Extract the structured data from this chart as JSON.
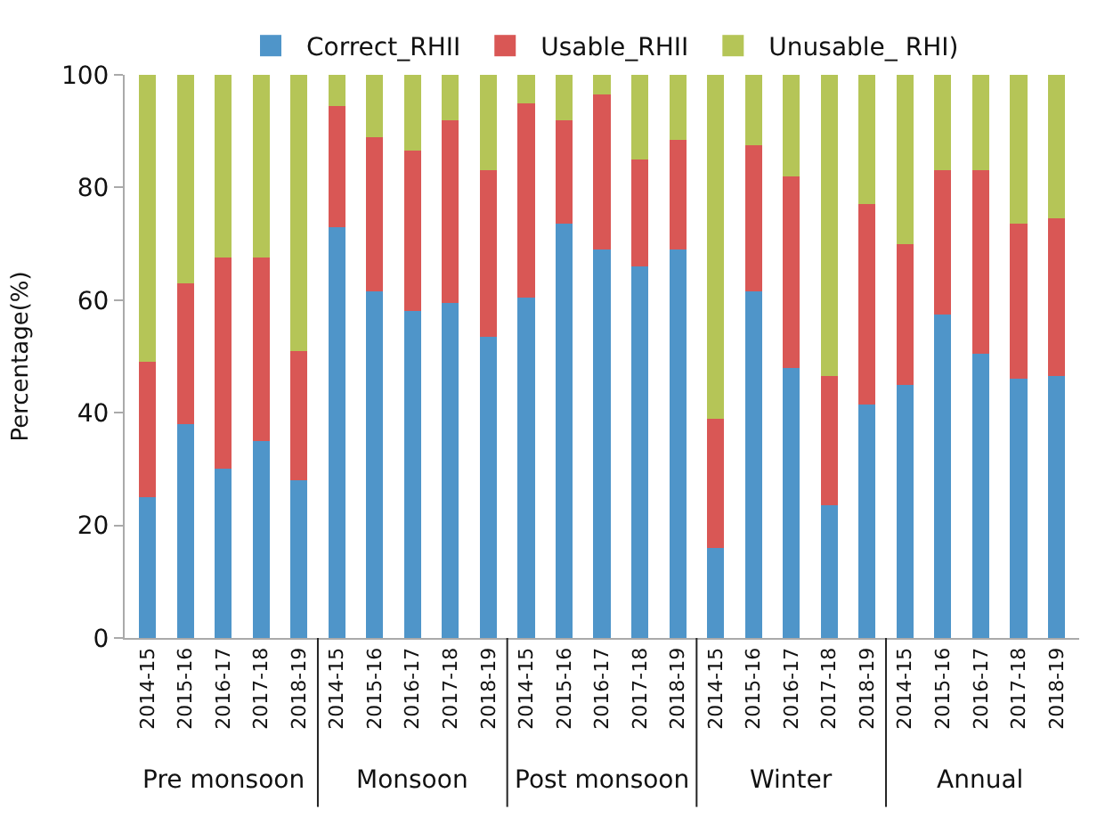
{
  "chart_data": {
    "type": "bar",
    "stacked": true,
    "ylabel": "Percentage(%)",
    "ylim": [
      0,
      100
    ],
    "yticks": [
      0,
      20,
      40,
      60,
      80,
      100
    ],
    "legend": "top",
    "categories": [
      "2014-15",
      "2015-16",
      "2016-17",
      "2017-18",
      "2018-19",
      "2014-15",
      "2015-16",
      "2016-17",
      "2017-18",
      "2018-19",
      "2014-15",
      "2015-16",
      "2016-17",
      "2017-18",
      "2018-19",
      "2014-15",
      "2015-16",
      "2016-17",
      "2017-18",
      "2018-19",
      "2014-15",
      "2015-16",
      "2016-17",
      "2017-18",
      "2018-19"
    ],
    "annotations": [
      "Pre monsoon",
      "Monsoon",
      "Post monsoon",
      "Winter",
      "Annual"
    ],
    "series": [
      {
        "name": "Correct_RHII",
        "color": "#4f95c9",
        "values": [
          25,
          38,
          30,
          35,
          28,
          73,
          61.5,
          58,
          59.5,
          53.5,
          60.5,
          73.5,
          69,
          66,
          69,
          16,
          61.5,
          48,
          23.5,
          41.5,
          45,
          57.5,
          50.5,
          46,
          46.5
        ]
      },
      {
        "name": "Usable_RHII",
        "color": "#d95755",
        "values": [
          24,
          25,
          37.5,
          32.5,
          23,
          21.5,
          27.5,
          28.5,
          32.5,
          29.5,
          34.5,
          18.5,
          27.5,
          19,
          19.5,
          23,
          26,
          34,
          23,
          35.5,
          25,
          25.5,
          32.5,
          27.5,
          28
        ]
      },
      {
        "name": "Unusable_ RHI)",
        "color": "#b5c557",
        "values": [
          51,
          37,
          32.5,
          32.5,
          49,
          5.5,
          11,
          13.5,
          8,
          17,
          5,
          8,
          3.5,
          15,
          11.5,
          61,
          12.5,
          18,
          53.5,
          23,
          30,
          17,
          17,
          26.5,
          25.5
        ]
      }
    ]
  }
}
